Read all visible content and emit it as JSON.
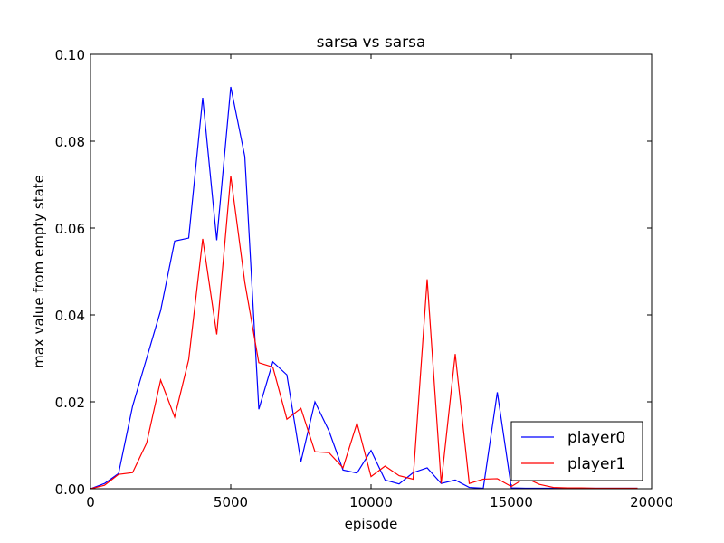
{
  "chart_data": {
    "type": "line",
    "title": "sarsa vs sarsa",
    "xlabel": "episode",
    "ylabel": "max value from empty state",
    "xlim": [
      0,
      20000
    ],
    "ylim": [
      0,
      0.1
    ],
    "x_ticks": [
      0,
      5000,
      10000,
      15000,
      20000
    ],
    "x_tick_labels": [
      "0",
      "5000",
      "10000",
      "15000",
      "20000"
    ],
    "y_ticks": [
      0,
      0.02,
      0.04,
      0.06,
      0.08,
      0.1
    ],
    "y_tick_labels": [
      "0.00",
      "0.02",
      "0.04",
      "0.06",
      "0.08",
      "0.10"
    ],
    "grid": false,
    "legend_position": "lower-right",
    "x": [
      0,
      500,
      1000,
      1500,
      2000,
      2500,
      3000,
      3500,
      4000,
      4500,
      5000,
      5500,
      6000,
      6500,
      7000,
      7500,
      8000,
      8500,
      9000,
      9500,
      10000,
      10500,
      11000,
      11500,
      12000,
      12500,
      13000,
      13500,
      14000,
      14500,
      15000,
      15500,
      16000,
      16500,
      17000,
      17500,
      18000,
      18500,
      19000,
      19500
    ],
    "series": [
      {
        "name": "player0",
        "color": "#0000ff",
        "values": [
          0.0,
          0.0012,
          0.0035,
          0.019,
          0.03,
          0.041,
          0.057,
          0.0577,
          0.09,
          0.0572,
          0.0925,
          0.0765,
          0.0183,
          0.0292,
          0.0262,
          0.0062,
          0.02,
          0.0133,
          0.0043,
          0.0036,
          0.0088,
          0.002,
          0.0011,
          0.0037,
          0.0048,
          0.0012,
          0.002,
          0.0003,
          0.0001,
          0.0222,
          0.0002,
          0.0001,
          0.0001,
          0.0001,
          0.0001,
          0.0001,
          0.0001,
          0.0001,
          0.0001,
          0.0001
        ]
      },
      {
        "name": "player1",
        "color": "#ff0000",
        "values": [
          0.0,
          0.0008,
          0.0033,
          0.0037,
          0.0105,
          0.025,
          0.0165,
          0.0297,
          0.0575,
          0.0355,
          0.072,
          0.0475,
          0.029,
          0.028,
          0.016,
          0.0185,
          0.0085,
          0.0083,
          0.0048,
          0.0151,
          0.0028,
          0.0052,
          0.003,
          0.0022,
          0.0482,
          0.0012,
          0.031,
          0.0012,
          0.0022,
          0.0023,
          0.0005,
          0.0025,
          0.001,
          0.0003,
          0.0002,
          0.0002,
          0.0001,
          0.0001,
          0.0001,
          0.0001
        ]
      }
    ]
  }
}
